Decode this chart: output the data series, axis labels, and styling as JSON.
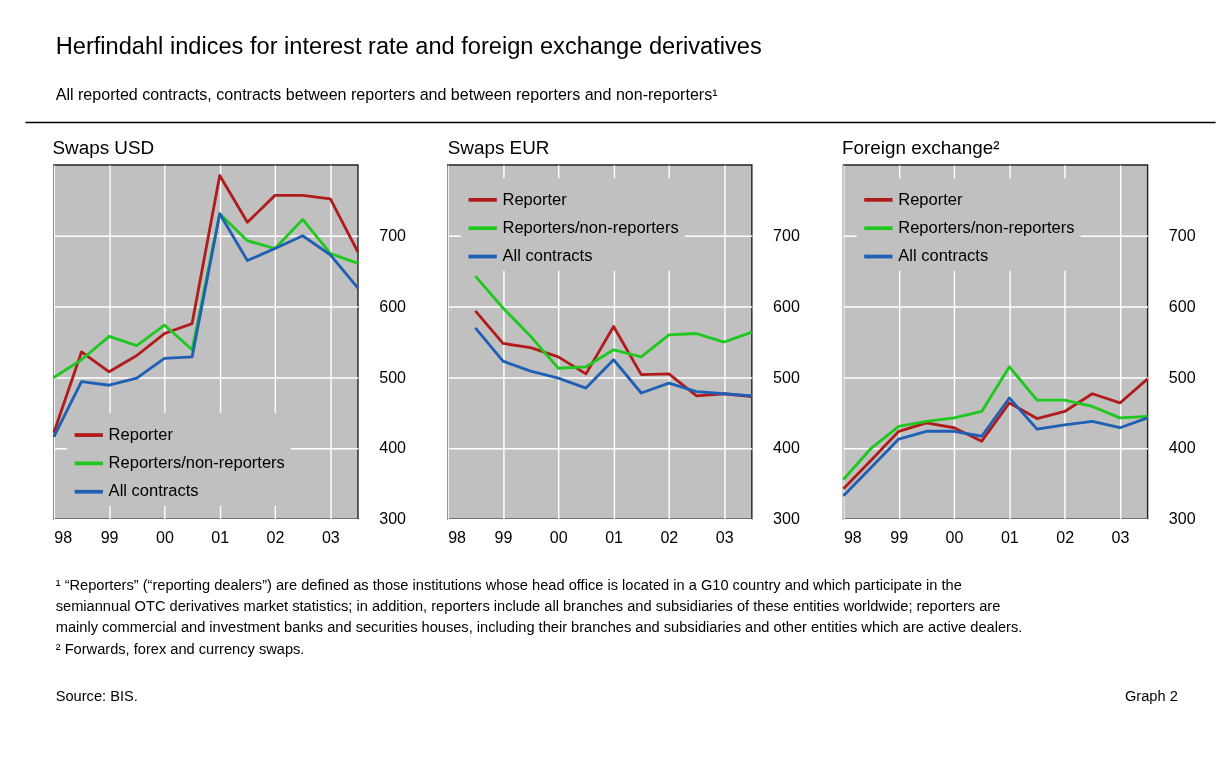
{
  "chart_data": [
    {
      "type": "other",
      "title": "Herfindahl indices for interest rate and foreign exchange derivatives",
      "subtitle": "All reported contracts, contracts between reporters and between reporters and non-reporters¹",
      "annotations": [
        "¹ “Reporters” (“reporting dealers”) are defined as those institutions whose head office is located in a G10 country and which participate in the semiannual OTC derivatives market statistics; in addition, reporters include all branches and subsidiaries of these entities worldwide; reporters are mainly commercial and investment banks and securities houses, including their branches and subsidiaries and other entities which are active dealers.",
        "² Forwards, forex and currency swaps.",
        "Source: BIS.",
        "Graph 2"
      ]
    },
    {
      "type": "line",
      "title": "Swaps USD",
      "x": [
        1998,
        1998.5,
        1999,
        1999.5,
        2000,
        2000.5,
        2001,
        2001.5,
        2002,
        2002.5,
        2003,
        2003.5
      ],
      "xlim": [
        1998,
        2003.5
      ],
      "xticks": [
        {
          "value": 1998,
          "label": "98"
        },
        {
          "value": 1999,
          "label": "99"
        },
        {
          "value": 2000,
          "label": "00"
        },
        {
          "value": 2001,
          "label": "01"
        },
        {
          "value": 2002,
          "label": "02"
        },
        {
          "value": 2003,
          "label": "03"
        }
      ],
      "ylim": [
        300,
        800
      ],
      "yticks": [
        300,
        400,
        500,
        600,
        700
      ],
      "grid": true,
      "legend": "bottom left",
      "series": [
        {
          "name": "Reporter",
          "color": "#b01c1c",
          "values": [
            422,
            536,
            508,
            531,
            562,
            576,
            785,
            719,
            757,
            757,
            752,
            677
          ]
        },
        {
          "name": "Reporters/non-reporters",
          "color": "#1ec81e",
          "values": [
            500,
            525,
            558,
            545,
            574,
            539,
            731,
            693,
            682,
            723,
            675,
            661
          ]
        },
        {
          "name": "All contracts",
          "color": "#1f5fb4",
          "values": [
            416,
            494,
            489,
            499,
            527,
            529,
            731,
            665,
            682,
            700,
            673,
            626
          ]
        }
      ]
    },
    {
      "type": "line",
      "title": "Swaps EUR",
      "x": [
        1998.5,
        1999,
        1999.5,
        2000,
        2000.5,
        2001,
        2001.5,
        2002,
        2002.5,
        2003,
        2003.5
      ],
      "xlim": [
        1998,
        2003.5
      ],
      "xticks": [
        {
          "value": 1998,
          "label": "98"
        },
        {
          "value": 1999,
          "label": "99"
        },
        {
          "value": 2000,
          "label": "00"
        },
        {
          "value": 2001,
          "label": "01"
        },
        {
          "value": 2002,
          "label": "02"
        },
        {
          "value": 2003,
          "label": "03"
        }
      ],
      "ylim": [
        300,
        800
      ],
      "yticks": [
        300,
        400,
        500,
        600,
        700
      ],
      "grid": true,
      "legend": "top left",
      "series": [
        {
          "name": "Reporter",
          "color": "#b01c1c",
          "values": [
            594,
            548,
            542,
            529,
            505,
            572,
            504,
            505,
            474,
            477,
            473
          ]
        },
        {
          "name": "Reporters/non-reporters",
          "color": "#1ec81e",
          "values": [
            643,
            598,
            558,
            513,
            515,
            539,
            529,
            560,
            562,
            550,
            564
          ]
        },
        {
          "name": "All contracts",
          "color": "#1f5fb4",
          "values": [
            570,
            523,
            509,
            499,
            485,
            525,
            478,
            492,
            480,
            477,
            474
          ]
        }
      ]
    },
    {
      "type": "line",
      "title": "Foreign exchange²",
      "x": [
        1998,
        1998.5,
        1999,
        1999.5,
        2000,
        2000.5,
        2001,
        2001.5,
        2002,
        2002.5,
        2003,
        2003.5
      ],
      "xlim": [
        1998,
        2003.5
      ],
      "xticks": [
        {
          "value": 1998,
          "label": "98"
        },
        {
          "value": 1999,
          "label": "99"
        },
        {
          "value": 2000,
          "label": "00"
        },
        {
          "value": 2001,
          "label": "01"
        },
        {
          "value": 2002,
          "label": "02"
        },
        {
          "value": 2003,
          "label": "03"
        }
      ],
      "ylim": [
        300,
        800
      ],
      "yticks": [
        300,
        400,
        500,
        600,
        700
      ],
      "grid": true,
      "legend": "top left",
      "series": [
        {
          "name": "Reporter",
          "color": "#b01c1c",
          "values": [
            343,
            383,
            424,
            436,
            429,
            410,
            464,
            442,
            452,
            477,
            464,
            498
          ]
        },
        {
          "name": "Reporters/non-reporters",
          "color": "#1ec81e",
          "values": [
            356,
            400,
            431,
            438,
            443,
            452,
            515,
            468,
            468,
            459,
            443,
            445
          ]
        },
        {
          "name": "All contracts",
          "color": "#1f5fb4",
          "values": [
            333,
            373,
            413,
            424,
            424,
            417,
            471,
            427,
            433,
            438,
            429,
            443
          ]
        }
      ]
    }
  ]
}
